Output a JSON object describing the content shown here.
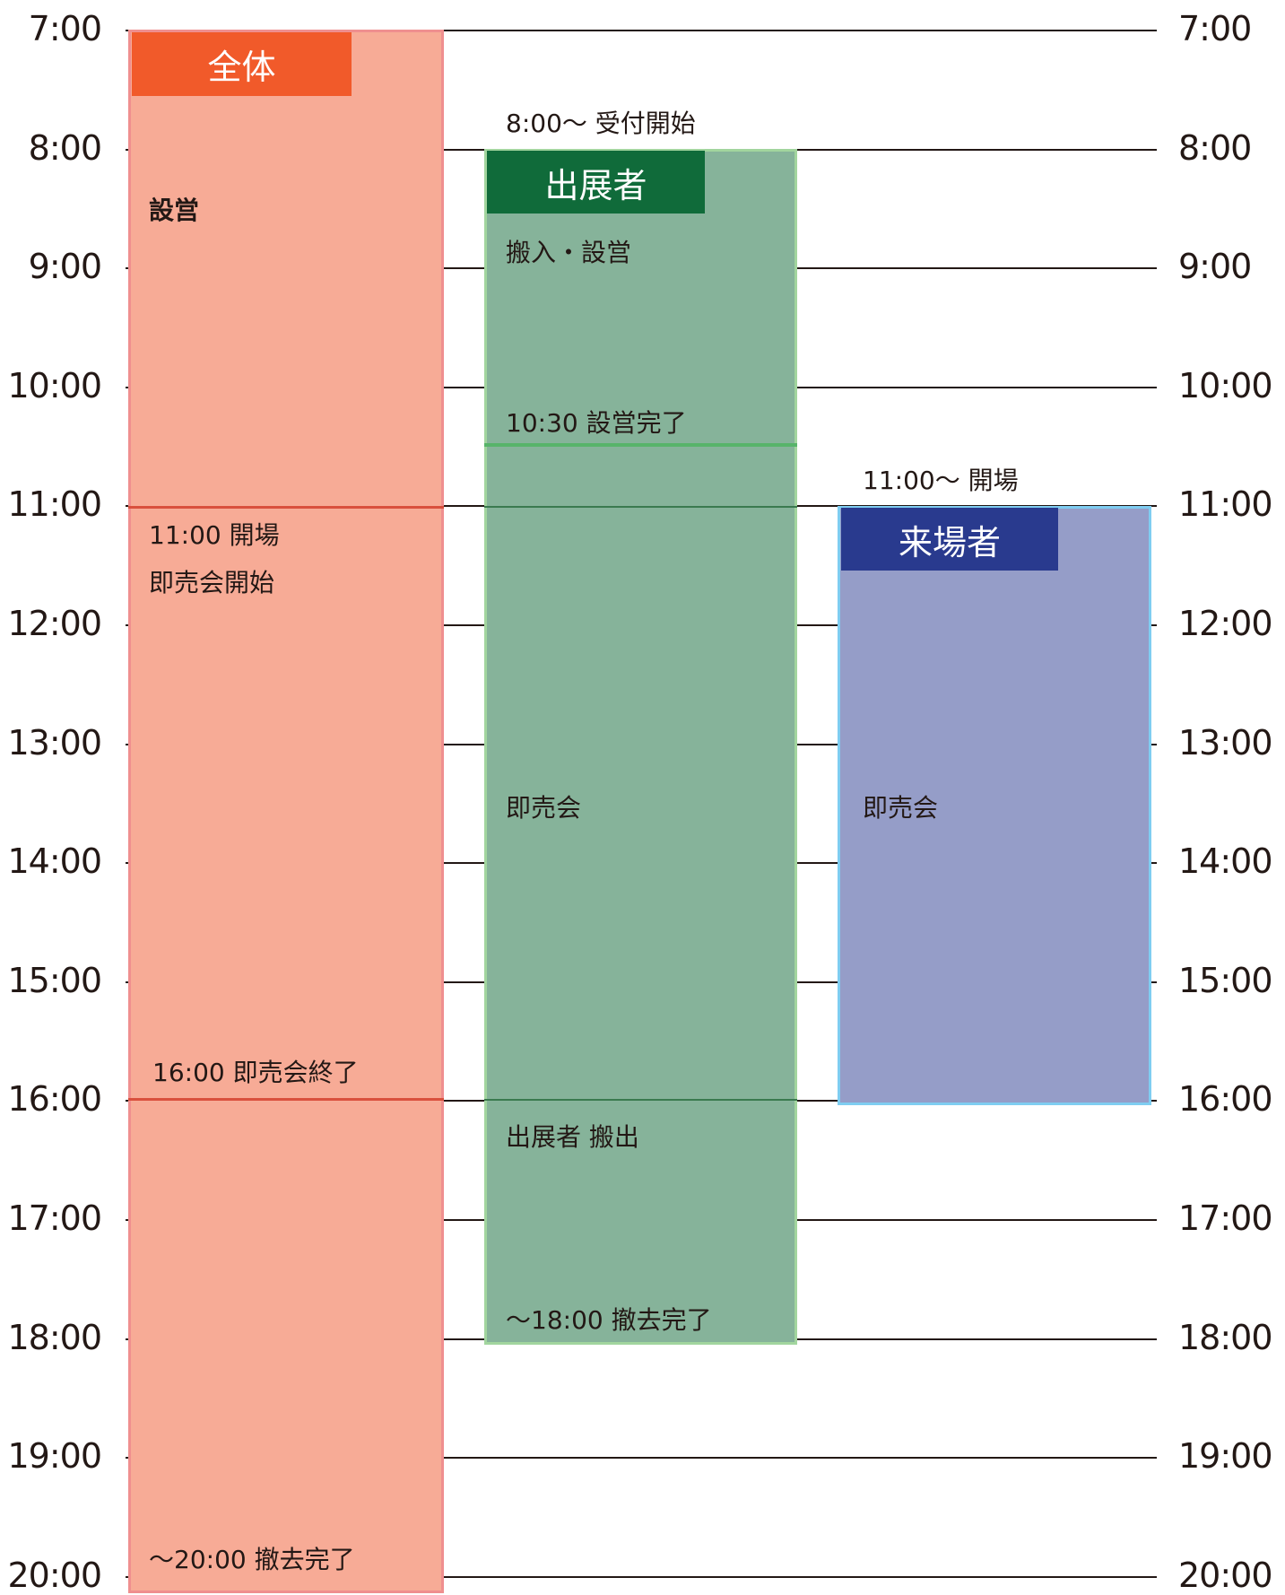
{
  "hours": [
    "7:00",
    "8:00",
    "9:00",
    "10:00",
    "11:00",
    "12:00",
    "13:00",
    "14:00",
    "15:00",
    "16:00",
    "17:00",
    "18:00",
    "19:00",
    "20:00"
  ],
  "columns": {
    "all": {
      "title": "全体",
      "color": "#f15a2a",
      "fill": "#f7ab96",
      "start": "7:00",
      "end": "20:00"
    },
    "exhibitors": {
      "title": "出展者",
      "color": "#106b3a",
      "fill": "#86b39a",
      "start": "8:00",
      "end": "18:00"
    },
    "visitors": {
      "title": "来場者",
      "color": "#293a8e",
      "fill": "#959dc8",
      "start": "11:00",
      "end": "16:00"
    }
  },
  "notes": {
    "all_setup": "設営",
    "all_open": "11:00 開場",
    "all_sale_start": "即売会開始",
    "all_sale_end": "16:00 即売会終了",
    "all_teardown_done": "〜20:00 撤去完了",
    "exh_reception": "8:00〜 受付開始",
    "exh_setup": "搬入・設営",
    "exh_setup_done": "10:30 設営完了",
    "exh_sale": "即売会",
    "exh_carry_out": "出展者 搬出",
    "exh_teardown_done": "〜18:00 撤去完了",
    "vis_open": "11:00〜 開場",
    "vis_sale": "即売会"
  }
}
